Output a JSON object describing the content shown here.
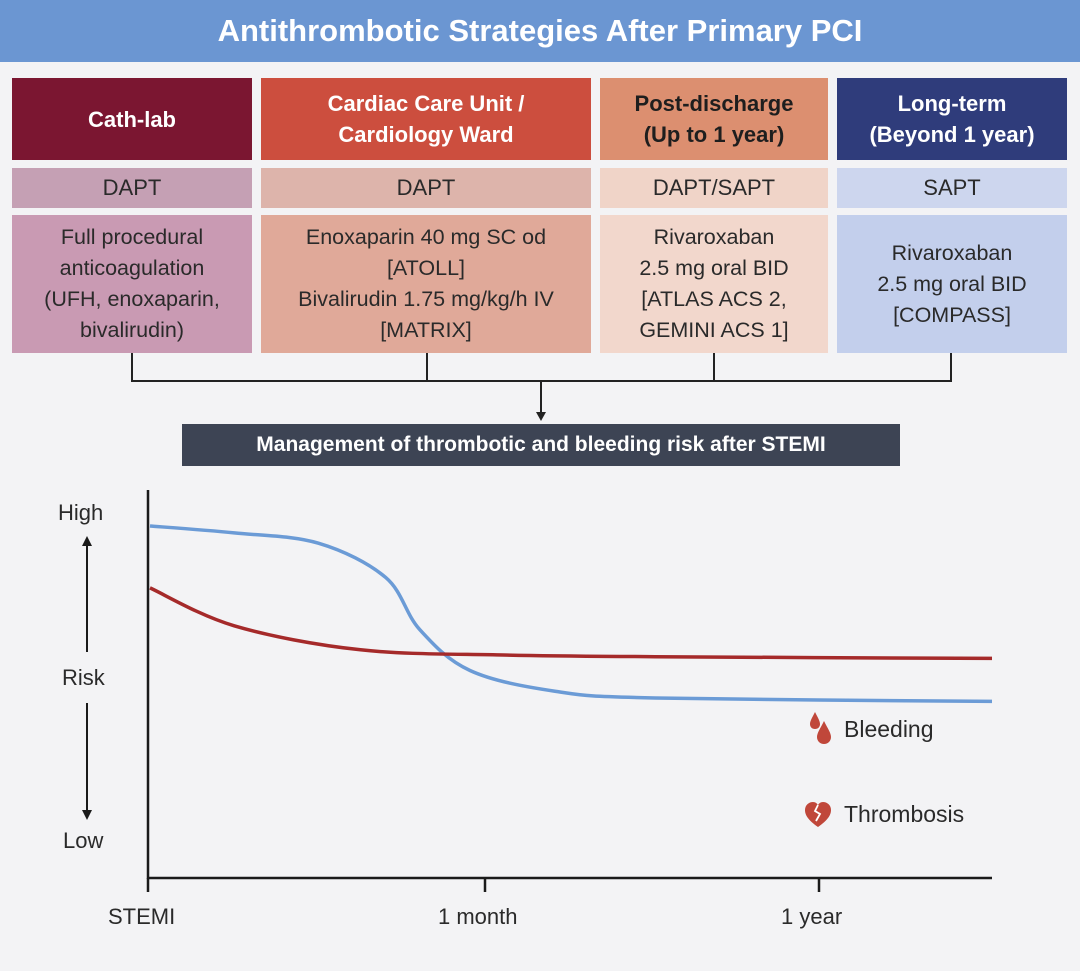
{
  "title": "Antithrombotic Strategies After Primary PCI",
  "columns": [
    {
      "header": "Cath-lab",
      "therapy": "DAPT",
      "detail": "Full procedural\nanticoagulation\n(UFH, enoxaparin,\nbivalirudin)",
      "header_color": "#7b1631",
      "therapy_color": "#c5a0b4",
      "detail_color": "#c99ab3"
    },
    {
      "header": "Cardiac Care Unit /\nCardiology Ward",
      "therapy": "DAPT",
      "detail": "Enoxaparin 40 mg SC od\n[ATOLL]\nBivalirudin 1.75 mg/kg/h IV\n[MATRIX]",
      "header_color": "#cc4e3e",
      "therapy_color": "#ddb4ab",
      "detail_color": "#e0a999"
    },
    {
      "header": "Post-discharge\n(Up to 1 year)",
      "therapy": "DAPT/SAPT",
      "detail": "Rivaroxaban\n2.5 mg oral BID\n[ATLAS ACS 2,\nGEMINI ACS 1]",
      "header_color": "#dc8f70",
      "therapy_color": "#f0d4c8",
      "detail_color": "#f2d7cc"
    },
    {
      "header": "Long-term\n(Beyond 1 year)",
      "therapy": "SAPT",
      "detail": "Rivaroxaban\n2.5 mg oral BID\n[COMPASS]",
      "header_color": "#2f3c7b",
      "therapy_color": "#cdd6ee",
      "detail_color": "#c3cfec"
    }
  ],
  "management_label": "Management of thrombotic and bleeding risk after STEMI",
  "chart_data": {
    "type": "line",
    "x_ticks": [
      "STEMI",
      "1 month",
      "1 year"
    ],
    "y_labels": {
      "high": "High",
      "mid": "Risk",
      "low": "Low"
    },
    "series": [
      {
        "name": "Bleeding",
        "color": "#a52a2a",
        "icon": "blood-drops-icon",
        "points": [
          [
            0.0,
            0.82
          ],
          [
            0.1,
            0.71
          ],
          [
            0.25,
            0.64
          ],
          [
            0.42,
            0.625
          ],
          [
            0.6,
            0.62
          ],
          [
            1.0,
            0.615
          ]
        ]
      },
      {
        "name": "Thrombosis",
        "color": "#6b9bd6",
        "icon": "broken-heart-icon",
        "points": [
          [
            0.0,
            1.0
          ],
          [
            0.1,
            0.98
          ],
          [
            0.2,
            0.95
          ],
          [
            0.28,
            0.85
          ],
          [
            0.32,
            0.7
          ],
          [
            0.38,
            0.58
          ],
          [
            0.48,
            0.52
          ],
          [
            0.6,
            0.5
          ],
          [
            1.0,
            0.49
          ]
        ]
      }
    ]
  }
}
